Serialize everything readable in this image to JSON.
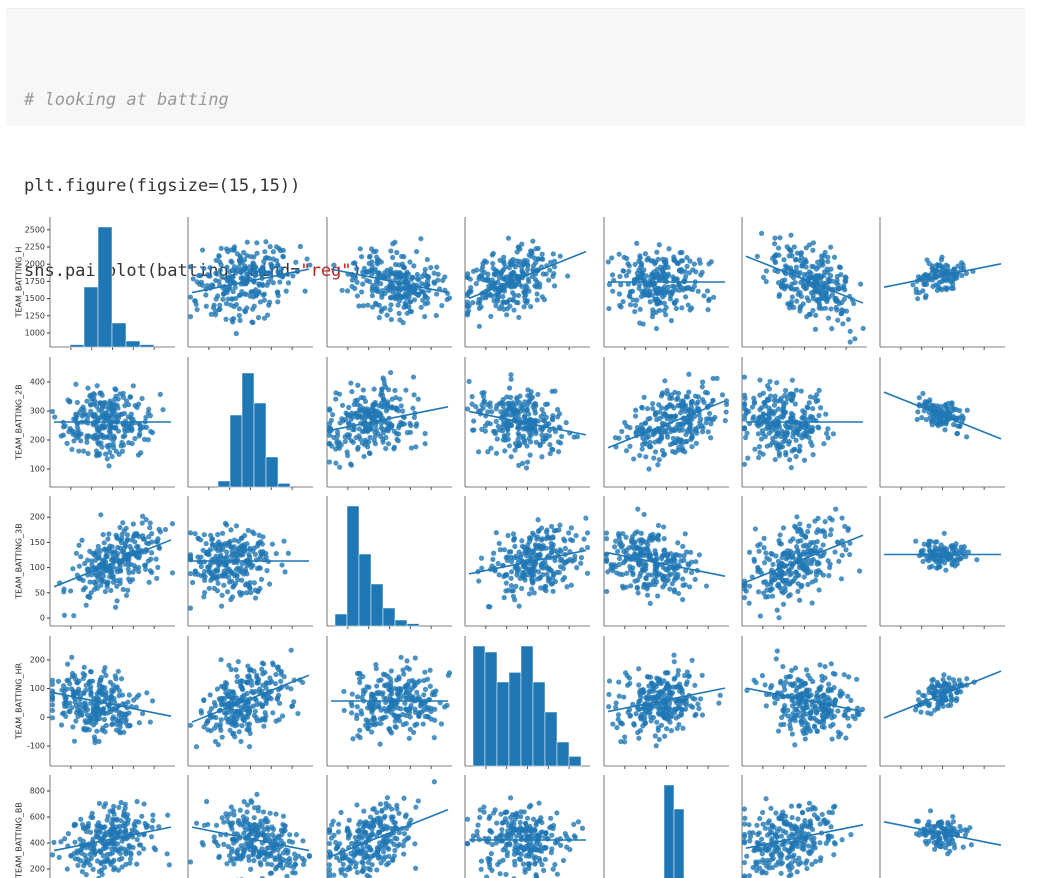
{
  "code": {
    "lines": [
      [
        "# looking at batting"
      ],
      [
        "plt.figure(figsize=(15,15))"
      ],
      [
        "sns.pairplot(batting, kind=",
        "\"reg\"",
        ")"
      ]
    ]
  },
  "pairplot": {
    "rows": [
      {
        "label": "TEAM_BATTING_H",
        "yticks": [
          1000,
          1250,
          1500,
          1750,
          2000,
          2250,
          2500
        ]
      },
      {
        "label": "TEAM_BATTING_2B",
        "yticks": [
          100,
          200,
          300,
          400
        ]
      },
      {
        "label": "TEAM_BATTING_3B",
        "yticks": [
          0,
          50,
          100,
          150,
          200
        ]
      },
      {
        "label": "TEAM_BATTING_HR",
        "yticks": [
          -100,
          0,
          100,
          200
        ]
      },
      {
        "label": "TEAM_BATTING_BB",
        "yticks": [
          200,
          400,
          600,
          800
        ]
      }
    ]
  }
}
